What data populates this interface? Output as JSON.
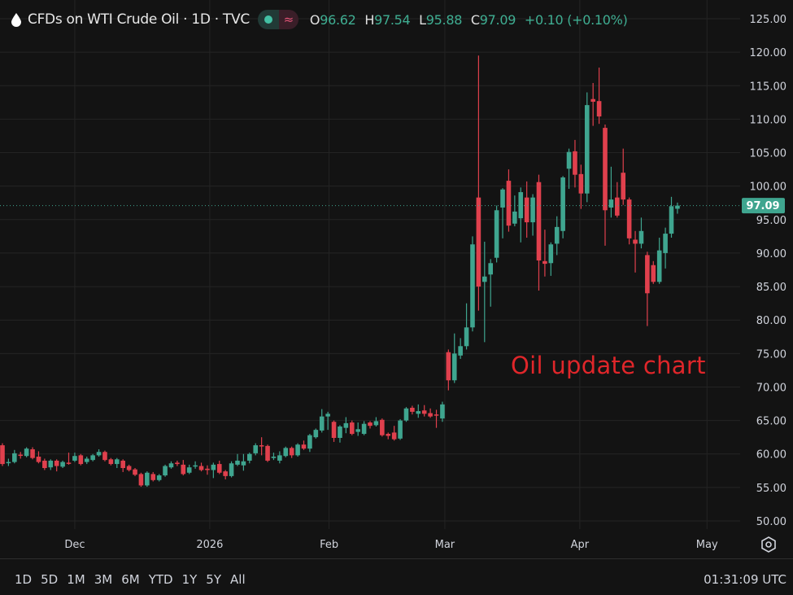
{
  "header": {
    "title": "CFDs on WTI Crude Oil · 1D · TVC",
    "icon": "oil-drop-icon",
    "status_icon": "market-open-dot-icon",
    "indicator_icon": "wave-approx-icon",
    "ohlc": {
      "o_label": "O",
      "o": "96.62",
      "h_label": "H",
      "h": "97.54",
      "l_label": "L",
      "l": "95.88",
      "c_label": "C",
      "c": "97.09",
      "change": "+0.10 (+0.10%)"
    }
  },
  "annotation": "Oil update chart",
  "bottom_bar": {
    "ranges": [
      "1D",
      "5D",
      "1M",
      "3M",
      "6M",
      "YTD",
      "1Y",
      "5Y",
      "All"
    ],
    "clock": "01:31:09 UTC"
  },
  "colors": {
    "up": "#3fa58f",
    "down": "#e0404d",
    "background": "#131313",
    "annotation": "#e0262a"
  },
  "chart_data": {
    "type": "candlestick",
    "title": "CFDs on WTI Crude Oil · 1D · TVC",
    "ylim": [
      50,
      125
    ],
    "y_ticks": [
      "50.00",
      "55.00",
      "60.00",
      "65.00",
      "70.00",
      "75.00",
      "80.00",
      "85.00",
      "90.00",
      "95.00",
      "100.00",
      "105.00",
      "110.00",
      "115.00",
      "120.00",
      "125.00"
    ],
    "x_ticks": [
      "Dec",
      "2026",
      "Feb",
      "Mar",
      "Apr",
      "May"
    ],
    "last_price": "97.09",
    "grid": true,
    "candles_ohlc": [
      [
        61.3,
        61.6,
        58.2,
        58.5
      ],
      [
        58.7,
        59.3,
        58.2,
        58.8
      ],
      [
        58.8,
        60.6,
        58.6,
        60.1
      ],
      [
        59.9,
        60.3,
        59.3,
        59.8
      ],
      [
        59.7,
        61.0,
        59.5,
        60.8
      ],
      [
        60.7,
        61.0,
        59.2,
        59.4
      ],
      [
        59.6,
        60.4,
        58.6,
        58.8
      ],
      [
        59.0,
        59.3,
        57.6,
        57.9
      ],
      [
        58.0,
        59.2,
        57.6,
        59.0
      ],
      [
        59.0,
        59.2,
        57.4,
        58.2
      ],
      [
        58.1,
        59.0,
        57.9,
        58.8
      ],
      [
        58.7,
        60.2,
        58.4,
        58.6
      ],
      [
        59.0,
        60.2,
        58.8,
        59.7
      ],
      [
        59.8,
        60.0,
        58.3,
        58.5
      ],
      [
        58.8,
        59.6,
        58.5,
        59.3
      ],
      [
        59.1,
        60.0,
        58.9,
        59.8
      ],
      [
        59.8,
        60.7,
        59.6,
        60.3
      ],
      [
        60.3,
        60.5,
        58.9,
        59.1
      ],
      [
        59.2,
        59.4,
        58.3,
        58.5
      ],
      [
        58.5,
        59.4,
        57.9,
        59.2
      ],
      [
        59.0,
        59.2,
        57.3,
        57.9
      ],
      [
        58.2,
        58.4,
        57.4,
        57.6
      ],
      [
        57.7,
        57.9,
        56.7,
        56.9
      ],
      [
        57.0,
        57.2,
        55.1,
        55.3
      ],
      [
        55.3,
        57.4,
        55.1,
        57.2
      ],
      [
        57.0,
        57.3,
        55.9,
        56.1
      ],
      [
        56.1,
        57.0,
        55.9,
        56.8
      ],
      [
        56.8,
        58.4,
        56.6,
        58.2
      ],
      [
        58.0,
        58.9,
        57.8,
        58.6
      ],
      [
        58.7,
        59.0,
        58.2,
        58.5
      ],
      [
        58.4,
        59.1,
        56.8,
        57.0
      ],
      [
        57.2,
        58.4,
        57.0,
        58.0
      ],
      [
        58.2,
        58.9,
        57.8,
        58.3
      ],
      [
        58.2,
        58.7,
        57.4,
        57.6
      ],
      [
        57.8,
        58.3,
        56.9,
        57.6
      ],
      [
        57.6,
        58.7,
        56.4,
        58.4
      ],
      [
        58.5,
        59.0,
        57.0,
        57.2
      ],
      [
        57.4,
        57.6,
        56.2,
        56.7
      ],
      [
        56.7,
        58.9,
        56.5,
        58.6
      ],
      [
        58.4,
        60.0,
        58.2,
        59.0
      ],
      [
        58.3,
        60.0,
        57.5,
        58.9
      ],
      [
        59.0,
        60.2,
        58.6,
        60.0
      ],
      [
        60.1,
        61.6,
        59.8,
        61.3
      ],
      [
        61.3,
        62.5,
        59.8,
        61.2
      ],
      [
        61.2,
        61.4,
        58.8,
        59.0
      ],
      [
        59.4,
        60.2,
        59.1,
        59.6
      ],
      [
        59.0,
        60.4,
        58.6,
        59.8
      ],
      [
        59.7,
        61.1,
        59.5,
        60.9
      ],
      [
        60.9,
        61.1,
        59.4,
        59.8
      ],
      [
        59.8,
        61.6,
        59.6,
        61.4
      ],
      [
        61.4,
        62.0,
        60.6,
        60.8
      ],
      [
        60.8,
        63.0,
        60.3,
        62.8
      ],
      [
        62.5,
        63.8,
        62.3,
        63.6
      ],
      [
        63.5,
        66.7,
        63.2,
        65.6
      ],
      [
        65.6,
        66.3,
        63.6,
        66.0
      ],
      [
        64.8,
        65.0,
        61.8,
        62.4
      ],
      [
        62.4,
        64.3,
        61.7,
        64.1
      ],
      [
        63.9,
        65.5,
        63.1,
        64.6
      ],
      [
        64.7,
        65.0,
        62.8,
        63.0
      ],
      [
        63.3,
        64.7,
        62.7,
        63.7
      ],
      [
        63.0,
        64.9,
        62.8,
        64.5
      ],
      [
        64.7,
        64.9,
        63.8,
        64.2
      ],
      [
        64.3,
        65.5,
        64.1,
        64.9
      ],
      [
        65.1,
        65.3,
        62.6,
        62.8
      ],
      [
        63.0,
        63.2,
        62.2,
        62.7
      ],
      [
        63.2,
        64.2,
        62.0,
        62.2
      ],
      [
        62.3,
        65.2,
        62.1,
        65.0
      ],
      [
        65.0,
        67.0,
        64.8,
        66.8
      ],
      [
        66.9,
        67.2,
        65.9,
        66.3
      ],
      [
        66.0,
        67.4,
        65.4,
        66.4
      ],
      [
        66.5,
        67.3,
        65.6,
        66.0
      ],
      [
        66.1,
        66.8,
        65.4,
        65.6
      ],
      [
        65.9,
        66.6,
        63.9,
        65.8
      ],
      [
        65.3,
        67.8,
        64.8,
        67.4
      ],
      [
        75.2,
        75.6,
        69.5,
        71.0
      ],
      [
        71.0,
        78.0,
        70.6,
        75.0
      ],
      [
        74.7,
        77.3,
        74.2,
        76.1
      ],
      [
        76.1,
        82.5,
        75.6,
        78.9
      ],
      [
        78.9,
        92.5,
        78.3,
        91.3
      ],
      [
        98.3,
        119.5,
        81.4,
        85.0
      ],
      [
        85.7,
        91.7,
        76.7,
        86.5
      ],
      [
        86.8,
        89.1,
        82.0,
        88.5
      ],
      [
        89.3,
        97.1,
        88.6,
        96.4
      ],
      [
        96.8,
        99.7,
        92.2,
        99.5
      ],
      [
        100.8,
        102.5,
        93.2,
        94.1
      ],
      [
        94.4,
        98.6,
        94.0,
        96.2
      ],
      [
        95.2,
        99.8,
        91.6,
        99.1
      ],
      [
        98.3,
        100.7,
        92.3,
        94.6
      ],
      [
        94.6,
        98.8,
        92.6,
        98.3
      ],
      [
        100.6,
        101.7,
        84.4,
        88.9
      ],
      [
        88.8,
        93.5,
        86.5,
        88.4
      ],
      [
        88.5,
        91.6,
        86.6,
        91.3
      ],
      [
        91.4,
        95.5,
        89.7,
        93.9
      ],
      [
        93.3,
        101.5,
        92.2,
        101.3
      ],
      [
        102.6,
        105.6,
        99.6,
        105.1
      ],
      [
        105.2,
        106.9,
        99.8,
        101.7
      ],
      [
        101.8,
        103.2,
        96.6,
        98.9
      ],
      [
        98.9,
        114.0,
        97.6,
        112.1
      ],
      [
        113.0,
        115.4,
        109.0,
        112.6
      ],
      [
        112.7,
        117.7,
        109.3,
        110.4
      ],
      [
        108.7,
        109.2,
        91.1,
        96.4
      ],
      [
        96.8,
        102.9,
        95.3,
        98.0
      ],
      [
        98.3,
        100.6,
        95.3,
        95.6
      ],
      [
        102.0,
        105.6,
        97.2,
        98.0
      ],
      [
        98.0,
        98.3,
        91.3,
        92.2
      ],
      [
        92.0,
        93.3,
        87.1,
        91.4
      ],
      [
        91.4,
        95.3,
        90.7,
        93.3
      ],
      [
        89.7,
        90.2,
        79.1,
        84.0
      ],
      [
        88.2,
        88.8,
        85.4,
        85.7
      ],
      [
        85.7,
        92.3,
        85.4,
        90.4
      ],
      [
        90.0,
        93.8,
        87.7,
        92.9
      ],
      [
        92.9,
        98.4,
        92.3,
        97.0
      ],
      [
        96.62,
        97.54,
        95.88,
        97.09
      ]
    ]
  }
}
